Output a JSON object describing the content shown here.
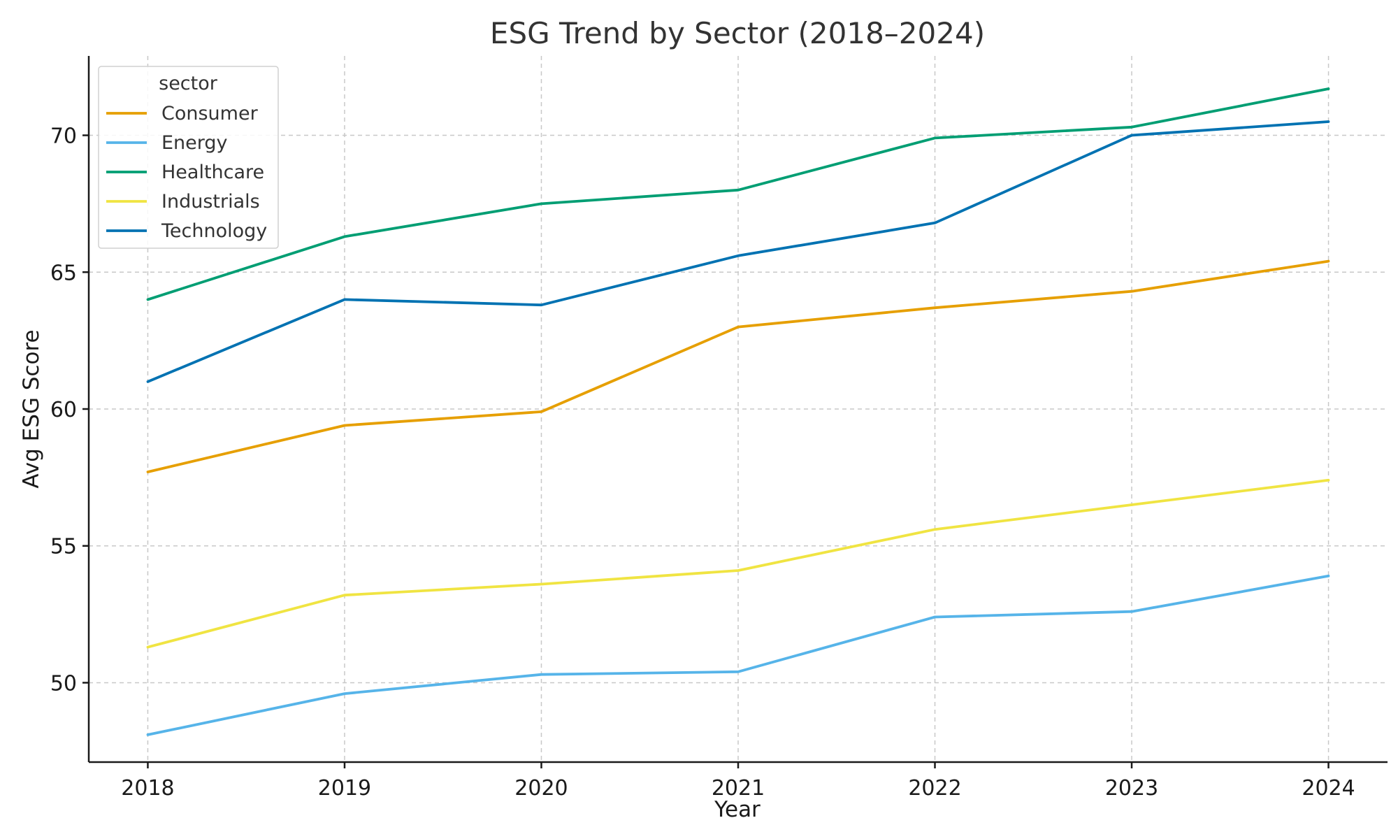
{
  "chart_data": {
    "type": "line",
    "title": "ESG Trend by Sector (2018–2024)",
    "xlabel": "Year",
    "ylabel": "Avg ESG Score",
    "x": [
      2018,
      2019,
      2020,
      2021,
      2022,
      2023,
      2024
    ],
    "xlim": [
      2017.7,
      2024.3
    ],
    "ylim": [
      47.1,
      72.9
    ],
    "yticks": [
      50,
      55,
      60,
      65,
      70
    ],
    "grid": true,
    "legend": {
      "title": "sector",
      "placement": "top-left"
    },
    "series": [
      {
        "name": "Consumer",
        "color": "#E69F00",
        "values": [
          57.7,
          59.4,
          59.9,
          63.0,
          63.7,
          64.3,
          65.4
        ]
      },
      {
        "name": "Energy",
        "color": "#56B4E9",
        "values": [
          48.1,
          49.6,
          50.3,
          50.4,
          52.4,
          52.6,
          53.9
        ]
      },
      {
        "name": "Healthcare",
        "color": "#009E73",
        "values": [
          64.0,
          66.3,
          67.5,
          68.0,
          69.9,
          70.3,
          71.7
        ]
      },
      {
        "name": "Industrials",
        "color": "#F0E442",
        "values": [
          51.3,
          53.2,
          53.6,
          54.1,
          55.6,
          56.5,
          57.4
        ]
      },
      {
        "name": "Technology",
        "color": "#0072B2",
        "values": [
          61.0,
          64.0,
          63.8,
          65.6,
          66.8,
          70.0,
          70.5
        ]
      }
    ]
  }
}
